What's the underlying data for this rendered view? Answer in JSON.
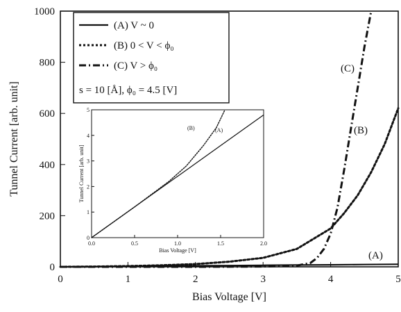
{
  "chart_data": [
    {
      "type": "line",
      "xlabel": "Bias Voltage [V]",
      "ylabel": "Tunnel Current [arb. unit]",
      "xlim": [
        0,
        5
      ],
      "ylim": [
        0,
        1000
      ],
      "xticks": [
        "0",
        "1",
        "2",
        "3",
        "4",
        "5"
      ],
      "yticks": [
        "0",
        "200",
        "400",
        "600",
        "800",
        "1000"
      ],
      "legend_placement": "top-left",
      "series": [
        {
          "name": "(A) V ~ 0",
          "label": "(A)",
          "style": "solid",
          "x": [
            0,
            0.5,
            1.0,
            1.5,
            2.0,
            2.5,
            3.0,
            3.5,
            4.0,
            4.5,
            5.0
          ],
          "y": [
            0,
            1,
            2,
            3,
            4,
            5,
            6,
            7,
            8,
            9,
            10
          ]
        },
        {
          "name": "(B) 0 < V < ϕ₀",
          "label": "(B)",
          "style": "dotted",
          "x": [
            0,
            0.5,
            1.0,
            1.5,
            2.0,
            2.5,
            3.0,
            3.5,
            4.0,
            4.2,
            4.4,
            4.6,
            4.8,
            5.0
          ],
          "y": [
            0,
            1,
            3,
            6,
            11,
            20,
            35,
            70,
            150,
            210,
            280,
            370,
            480,
            620
          ]
        },
        {
          "name": "(C) V > ϕ₀",
          "label": "(C)",
          "style": "dashdot",
          "x": [
            0,
            1.0,
            2.0,
            3.0,
            3.5,
            3.7,
            3.8,
            3.9,
            4.0,
            4.1,
            4.2,
            4.3,
            4.4,
            4.5,
            4.6
          ],
          "y": [
            0,
            0,
            0,
            1,
            5,
            15,
            35,
            70,
            130,
            230,
            380,
            540,
            700,
            860,
            1000
          ]
        }
      ],
      "annotations": [
        "s = 10 [Å], ϕ₀ = 4.5 [V]"
      ]
    },
    {
      "type": "line",
      "inset": true,
      "xlabel": "Bias Voltage [V]",
      "ylabel": "Tunnel Current [arb. unit]",
      "xlim": [
        0,
        2.0
      ],
      "ylim": [
        0,
        5
      ],
      "xticks": [
        "0.0",
        "0.5",
        "1.0",
        "1.5",
        "2.0"
      ],
      "yticks": [
        "0",
        "1",
        "2",
        "3",
        "4",
        "5"
      ],
      "series": [
        {
          "label": "(A)",
          "style": "solid",
          "x": [
            0,
            0.5,
            1.0,
            1.5,
            2.0
          ],
          "y": [
            0,
            1.2,
            2.4,
            3.6,
            4.8
          ]
        },
        {
          "label": "(B)",
          "style": "dotted",
          "x": [
            0,
            0.5,
            0.9,
            1.1,
            1.3,
            1.45,
            1.55
          ],
          "y": [
            0,
            1.2,
            2.2,
            2.8,
            3.6,
            4.3,
            5.0
          ]
        }
      ]
    }
  ]
}
